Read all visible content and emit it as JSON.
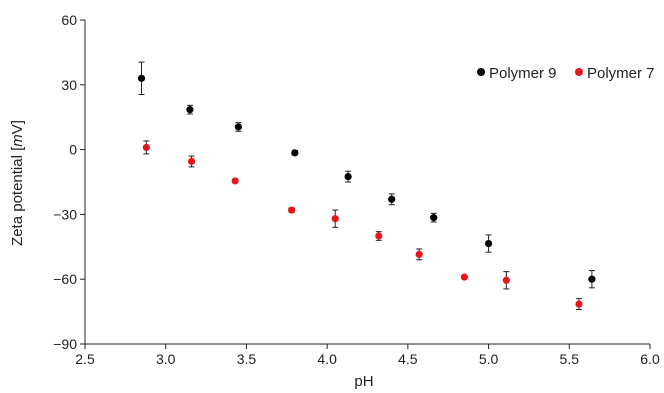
{
  "chart_data": {
    "type": "scatter",
    "xlabel": "pH",
    "ylabel_parts": [
      "Zeta potential [",
      "m",
      "V]"
    ],
    "xlim": [
      2.5,
      6.0
    ],
    "ylim": [
      -90,
      60
    ],
    "xticks": [
      "2.5",
      "3.0",
      "3.5",
      "4.0",
      "4.5",
      "5.0",
      "5.5",
      "6.0"
    ],
    "yticks": [
      "60",
      "30",
      "0",
      "−30",
      "−60",
      "−90"
    ],
    "grid": false,
    "legend_position": "top-right",
    "series": [
      {
        "name": "Polymer 9",
        "color": "#000000",
        "points": [
          {
            "x": 2.85,
            "y": 33,
            "err": 7.5
          },
          {
            "x": 3.15,
            "y": 18.5,
            "err": 2
          },
          {
            "x": 3.45,
            "y": 10.5,
            "err": 2
          },
          {
            "x": 3.8,
            "y": -1.5,
            "err": 1
          },
          {
            "x": 4.13,
            "y": -12.5,
            "err": 2.5
          },
          {
            "x": 4.4,
            "y": -23,
            "err": 2.5
          },
          {
            "x": 4.66,
            "y": -31.5,
            "err": 2
          },
          {
            "x": 5.0,
            "y": -43.5,
            "err": 4
          },
          {
            "x": 5.64,
            "y": -60,
            "err": 4
          }
        ]
      },
      {
        "name": "Polymer 7",
        "color": "#e8161c",
        "points": [
          {
            "x": 2.88,
            "y": 1,
            "err": 3
          },
          {
            "x": 3.16,
            "y": -5.5,
            "err": 2.5
          },
          {
            "x": 3.43,
            "y": -14.5,
            "err": 0.5
          },
          {
            "x": 3.78,
            "y": -28,
            "err": 1
          },
          {
            "x": 4.05,
            "y": -32,
            "err": 4
          },
          {
            "x": 4.32,
            "y": -40,
            "err": 2
          },
          {
            "x": 4.57,
            "y": -48.5,
            "err": 2.5
          },
          {
            "x": 4.85,
            "y": -59,
            "err": 0.5
          },
          {
            "x": 5.11,
            "y": -60.5,
            "err": 4
          },
          {
            "x": 5.56,
            "y": -71.5,
            "err": 2.5
          }
        ]
      }
    ]
  }
}
